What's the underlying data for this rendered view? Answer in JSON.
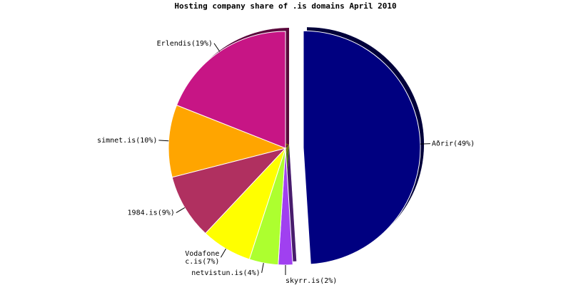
{
  "chart_data": {
    "type": "pie",
    "title": "Hosting company share of .is domains April 2010",
    "categories": [
      "Aðrir",
      "skyrr.is",
      "netvistun.is",
      "Vodafone c.is",
      "1984.is",
      "simnet.is",
      "Erlendis"
    ],
    "values": [
      49,
      2,
      4,
      7,
      9,
      10,
      19
    ],
    "value_labels": [
      "(49%)",
      "(2%)",
      "(4%)",
      "(7%)",
      "(9%)",
      "(10%)",
      "(19%)"
    ],
    "colors": [
      "#000080",
      "#a040f0",
      "#adff2f",
      "#ffff00",
      "#b03060",
      "#ffa500",
      "#c71585"
    ],
    "exploded": [
      0
    ]
  }
}
